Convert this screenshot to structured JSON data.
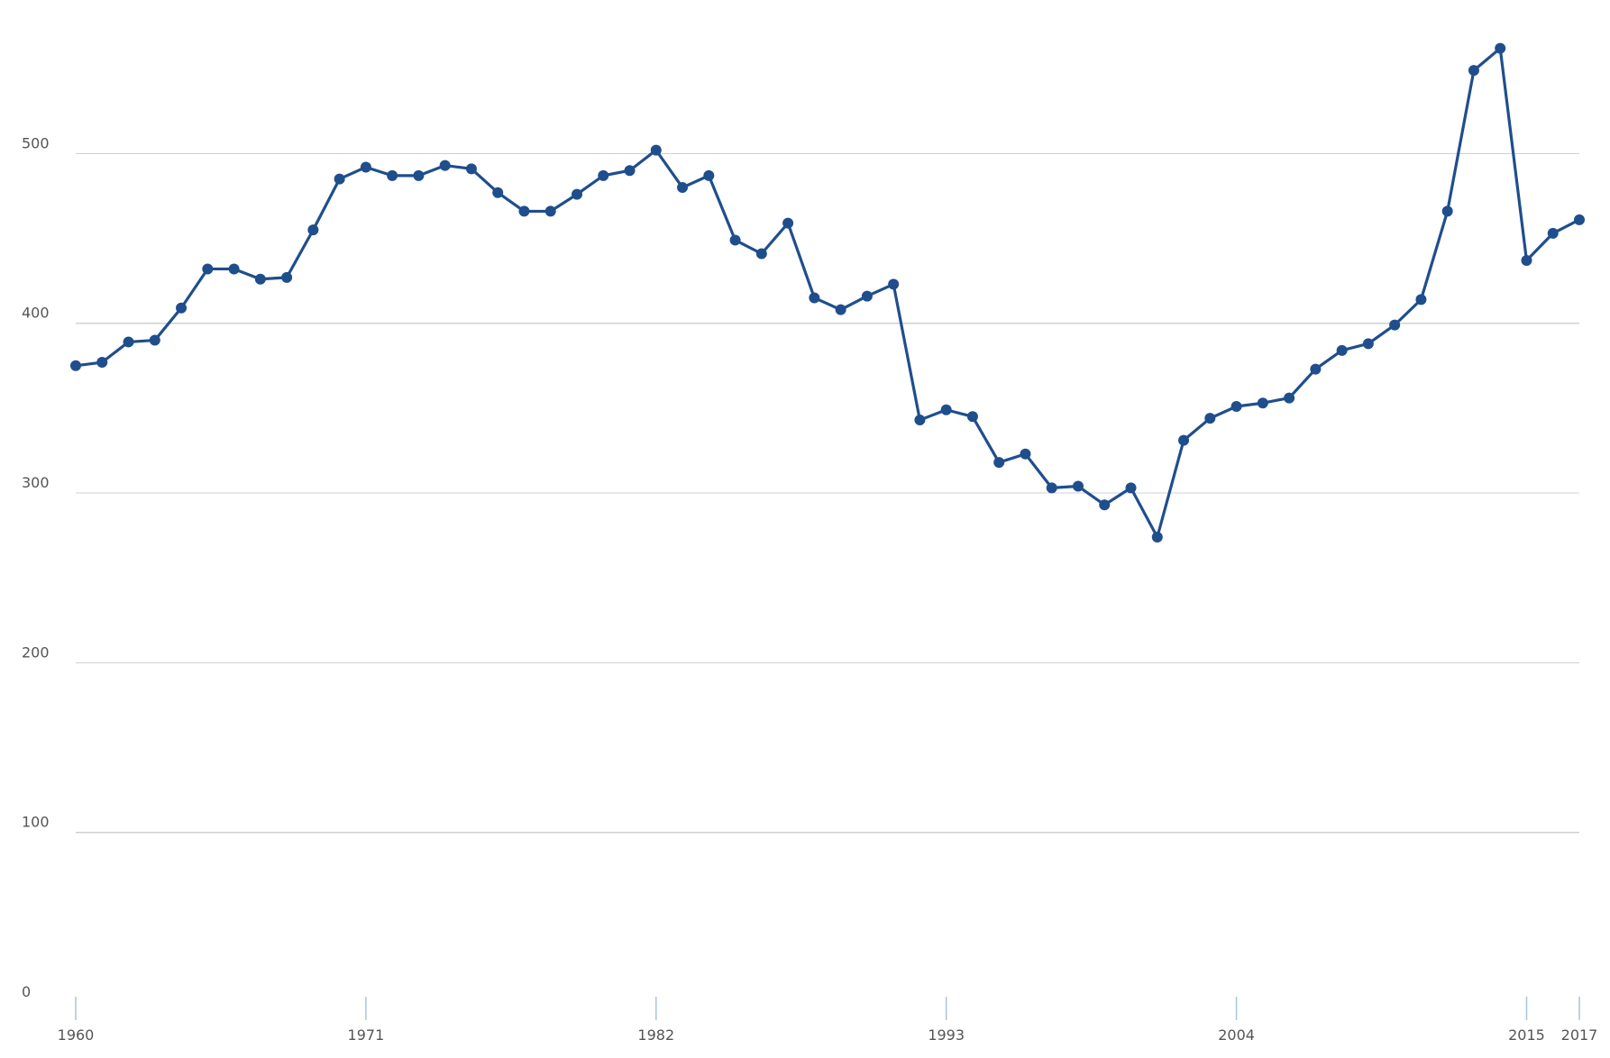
{
  "chart_data": {
    "type": "line",
    "title": "",
    "xlabel": "",
    "ylabel": "",
    "ylim": [
      0,
      570
    ],
    "xlim": [
      1960,
      2017
    ],
    "y_ticks": [
      "0",
      "100",
      "200",
      "300",
      "400",
      "500"
    ],
    "x_ticks": [
      "1960",
      "1971",
      "1982",
      "1993",
      "2004",
      "2015",
      "2017"
    ],
    "grid": true,
    "legend": "none",
    "colors": {
      "series": "#1f4e8c",
      "grid": "#d0d0d0",
      "tick_mark": "#aac4dc",
      "tick_text": "#555555"
    },
    "x": [
      1960,
      1961,
      1962,
      1963,
      1964,
      1965,
      1966,
      1967,
      1968,
      1969,
      1970,
      1971,
      1972,
      1973,
      1974,
      1975,
      1976,
      1977,
      1978,
      1979,
      1980,
      1981,
      1982,
      1983,
      1984,
      1985,
      1986,
      1987,
      1988,
      1989,
      1990,
      1991,
      1992,
      1993,
      1994,
      1995,
      1996,
      1997,
      1998,
      1999,
      2000,
      2001,
      2002,
      2003,
      2004,
      2005,
      2006,
      2007,
      2008,
      2009,
      2010,
      2011,
      2012,
      2013,
      2014,
      2015,
      2016,
      2017
    ],
    "series": [
      {
        "values": [
          375,
          377,
          389,
          390,
          409,
          432,
          432,
          426,
          427,
          455,
          485,
          492,
          487,
          487,
          493,
          491,
          477,
          466,
          466,
          476,
          487,
          490,
          502,
          480,
          487,
          449,
          441,
          459,
          415,
          408,
          416,
          423,
          343,
          349,
          345,
          318,
          323,
          303,
          304,
          293,
          303,
          274,
          331,
          344,
          351,
          353,
          356,
          373,
          384,
          388,
          399,
          414,
          466,
          549,
          562,
          437,
          453,
          461
        ]
      }
    ]
  }
}
